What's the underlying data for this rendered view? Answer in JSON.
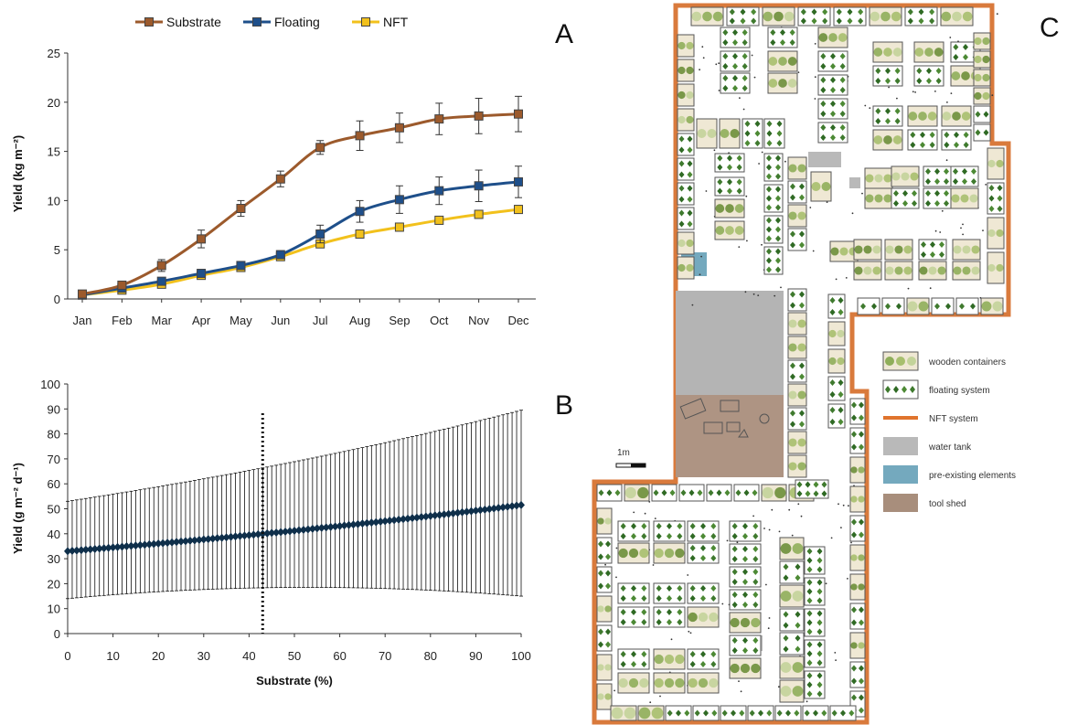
{
  "panels": {
    "a": "A",
    "b": "B",
    "c": "C"
  },
  "chart_data": [
    {
      "type": "line",
      "panel": "A",
      "ylabel": "Yield (kg m⁻²)",
      "categories": [
        "Jan",
        "Feb",
        "Mar",
        "Apr",
        "May",
        "Jun",
        "Jul",
        "Aug",
        "Sep",
        "Oct",
        "Nov",
        "Dec"
      ],
      "ylim": [
        0,
        25
      ],
      "yticks": [
        0,
        5,
        10,
        15,
        20,
        25
      ],
      "grid": false,
      "legend_position": "top",
      "series": [
        {
          "name": "Substrate",
          "color": "#9c5a2c",
          "values": [
            0.5,
            1.4,
            3.4,
            6.1,
            9.2,
            12.2,
            15.4,
            16.6,
            17.4,
            18.3,
            18.6,
            18.8
          ],
          "errors": [
            0.2,
            0.3,
            0.6,
            0.9,
            0.8,
            0.8,
            0.7,
            1.5,
            1.5,
            1.6,
            1.8,
            1.8
          ]
        },
        {
          "name": "Floating",
          "color": "#1e4f8a",
          "values": [
            0.4,
            1.1,
            1.8,
            2.6,
            3.4,
            4.5,
            6.6,
            8.9,
            10.1,
            11.0,
            11.5,
            11.9
          ],
          "errors": [
            0.2,
            0.2,
            0.3,
            0.4,
            0.4,
            0.4,
            0.9,
            1.1,
            1.4,
            1.4,
            1.6,
            1.6
          ]
        },
        {
          "name": "NFT",
          "color": "#f2c11c",
          "values": [
            0.4,
            0.9,
            1.5,
            2.4,
            3.2,
            4.3,
            5.6,
            6.6,
            7.3,
            8.0,
            8.6,
            9.1
          ],
          "errors": [
            0.2,
            0.2,
            0.3,
            0.3,
            0.3,
            0.3,
            0.3,
            0.3,
            0.4,
            0.4,
            0.4,
            0.4
          ]
        }
      ]
    },
    {
      "type": "scatter",
      "panel": "B",
      "xlabel": "Substrate (%)",
      "ylabel": "Yield (g m⁻² d⁻¹)",
      "xlim": [
        0,
        100
      ],
      "ylim": [
        0,
        100
      ],
      "xticks": [
        0,
        10,
        20,
        30,
        40,
        50,
        60,
        70,
        80,
        90,
        100
      ],
      "yticks": [
        0,
        10,
        20,
        30,
        40,
        50,
        60,
        70,
        80,
        90,
        100
      ],
      "x_step": 1,
      "mean_start": 33.0,
      "mean_end": 51.5,
      "upper_start": 53.0,
      "upper_end": 89.5,
      "lower_start": 14.0,
      "lower_end": 15.0,
      "lower_mid": 18.5,
      "reference_line_x": 43,
      "point_color": "#0f2f4a",
      "grid": false
    }
  ],
  "map": {
    "scale_label": "1m",
    "legend": [
      {
        "label": "wooden containers",
        "kind": "wood"
      },
      {
        "label": "floating system",
        "kind": "float"
      },
      {
        "label": "NFT system",
        "kind": "nft",
        "color": "#e0742d"
      },
      {
        "label": "water tank",
        "kind": "tank",
        "color": "#b9b9b9"
      },
      {
        "label": "pre-existing elements",
        "kind": "pre",
        "color": "#74a9be"
      },
      {
        "label": "tool shed",
        "kind": "shed",
        "color": "#a88e7c"
      }
    ]
  }
}
